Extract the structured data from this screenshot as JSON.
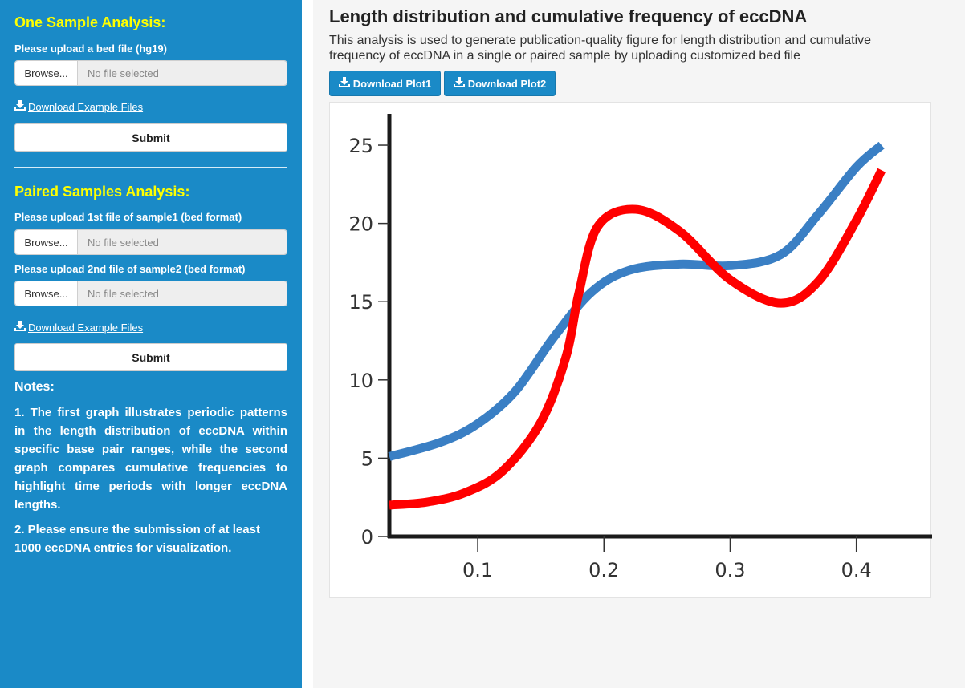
{
  "sidebar": {
    "single": {
      "title": "One Sample Analysis:",
      "upload_label": "Please upload a bed file (hg19)",
      "browse_label": "Browse...",
      "file_placeholder": "No file selected",
      "download_label": "Download Example Files",
      "submit_label": "Submit"
    },
    "paired": {
      "title": "Paired Samples Analysis:",
      "upload1_label": "Please upload 1st file of sample1 (bed format)",
      "upload2_label": "Please upload 2nd file of sample2 (bed format)",
      "browse_label": "Browse...",
      "file_placeholder": "No file selected",
      "download_label": "Download Example Files",
      "submit_label": "Submit"
    },
    "notes": {
      "title": "Notes:",
      "note1": "1. The first graph illustrates periodic patterns in the length distribution of eccDNA within specific base pair ranges, while the second graph compares cumulative frequencies to highlight time periods with longer eccDNA lengths.",
      "note2": "2. Please ensure the submission of at least 1000 eccDNA entries for visualization."
    }
  },
  "main": {
    "title": "Length distribution and cumulative frequency of eccDNA",
    "description": "This analysis is used to generate publication-quality figure for length distribution and cumulative frequency of eccDNA in a single or paired sample by uploading customized bed file",
    "buttons": {
      "plot1": "Download Plot1",
      "plot2": "Download Plot2"
    }
  },
  "colors": {
    "sidebar_bg": "#1a8ac7",
    "section_title": "#ffff00",
    "series_blue": "#3a7fc4",
    "series_red": "#ff0000"
  },
  "chart_data": {
    "type": "line",
    "title": "",
    "xlabel": "",
    "ylabel": "",
    "xlim": [
      0.03,
      0.46
    ],
    "ylim": [
      0,
      27
    ],
    "x_ticks": [
      "0.1",
      "0.2",
      "0.3",
      "0.4"
    ],
    "x_tick_values": [
      0.1,
      0.2,
      0.3,
      0.4
    ],
    "y_ticks": [
      "0",
      "5",
      "10",
      "15",
      "20",
      "25"
    ],
    "y_tick_values": [
      0,
      5,
      10,
      15,
      20,
      25
    ],
    "grid": false,
    "series": [
      {
        "color": "#3a7fc4",
        "x": [
          0.03,
          0.07,
          0.1,
          0.13,
          0.16,
          0.19,
          0.22,
          0.26,
          0.3,
          0.34,
          0.37,
          0.4,
          0.42
        ],
        "y": [
          5.1,
          6.0,
          7.2,
          9.3,
          12.7,
          15.6,
          17.0,
          17.4,
          17.3,
          18.0,
          20.6,
          23.6,
          25.0
        ]
      },
      {
        "color": "#ff0000",
        "x": [
          0.03,
          0.06,
          0.09,
          0.12,
          0.15,
          0.17,
          0.18,
          0.195,
          0.225,
          0.26,
          0.3,
          0.34,
          0.37,
          0.4,
          0.42
        ],
        "y": [
          2.0,
          2.2,
          2.8,
          4.2,
          7.3,
          11.5,
          15.5,
          19.8,
          20.9,
          19.5,
          16.4,
          14.9,
          16.3,
          20.2,
          23.4
        ]
      }
    ]
  }
}
